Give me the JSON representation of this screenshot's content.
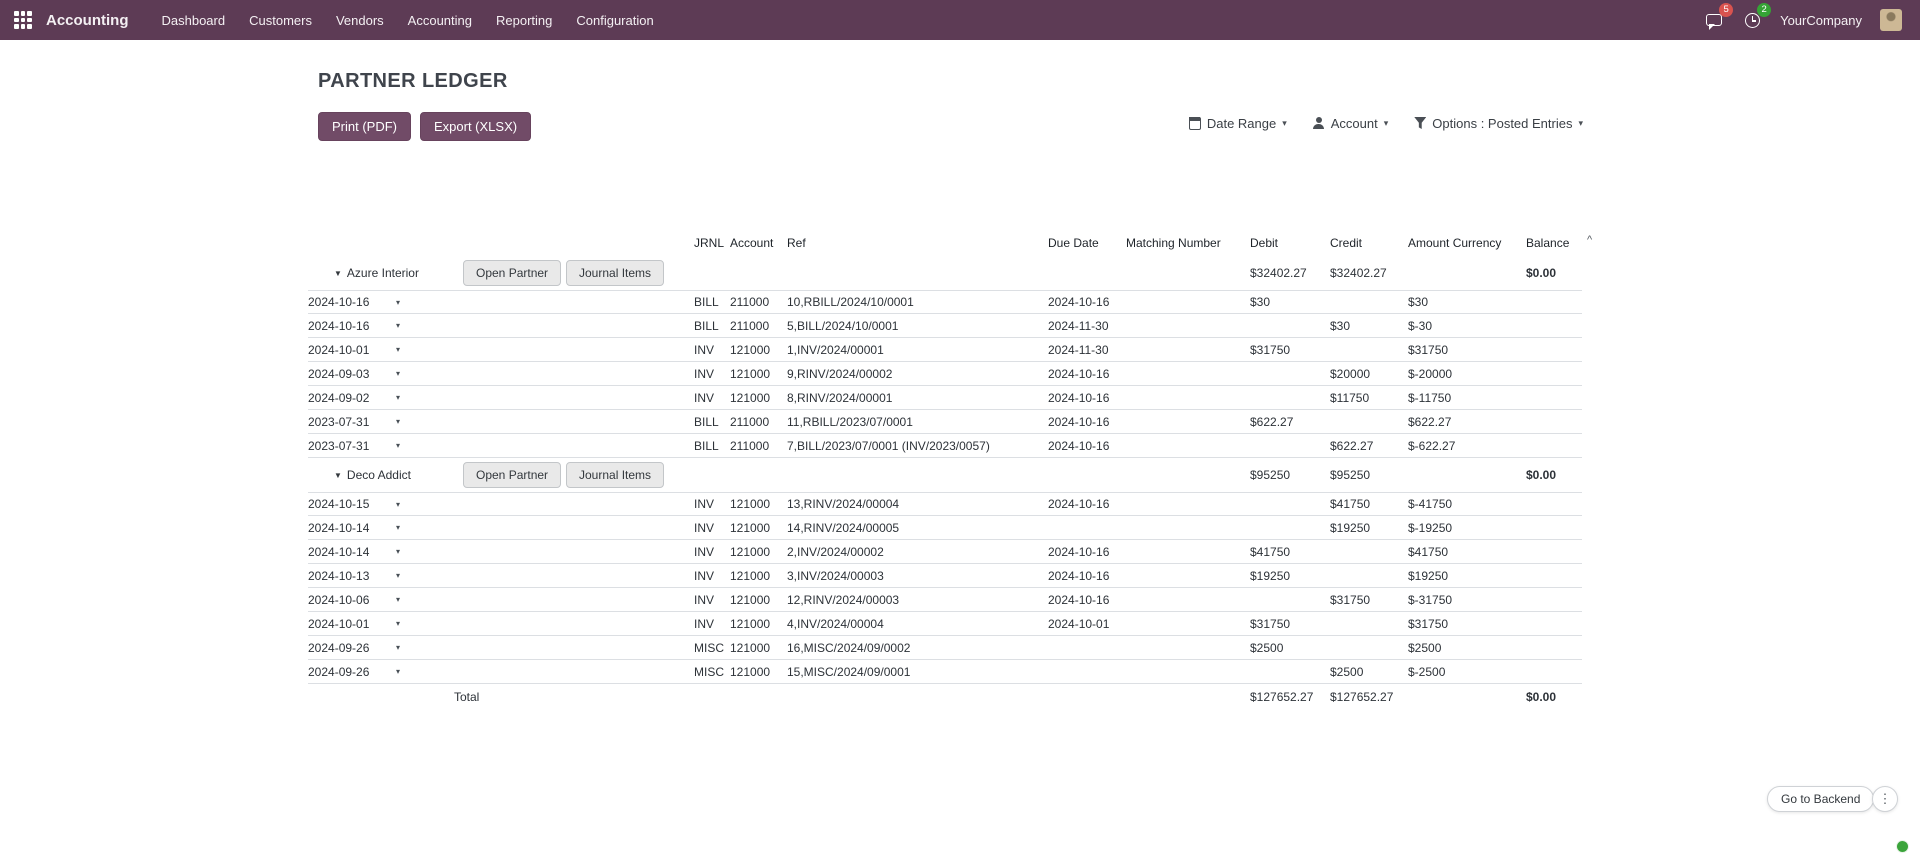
{
  "colors": {
    "primary": "#714B67",
    "topbar": "#5d3b55",
    "badge_red": "#d9534f",
    "badge_green": "#35a435"
  },
  "icons": {
    "fold_caret": "▼",
    "caret_down": "▾",
    "sort_asc": "^",
    "ellipsis": "⋮"
  },
  "topbar": {
    "brand": "Accounting",
    "menus": [
      "Dashboard",
      "Customers",
      "Vendors",
      "Accounting",
      "Reporting",
      "Configuration"
    ],
    "messages_badge": "5",
    "activity_badge": "2",
    "company": "YourCompany"
  },
  "page": {
    "title": "PARTNER LEDGER",
    "print_button": "Print (PDF)",
    "export_button": "Export (XLSX)"
  },
  "filters": {
    "date_range": "Date Range",
    "account": "Account",
    "options": "Options : Posted Entries"
  },
  "table": {
    "headers": {
      "jrnl": "JRNL",
      "account": "Account",
      "ref": "Ref",
      "due_date": "Due Date",
      "matching": "Matching Number",
      "debit": "Debit",
      "credit": "Credit",
      "amount_currency": "Amount Currency",
      "balance": "Balance"
    },
    "buttons": {
      "open_partner": "Open Partner",
      "journal_items": "Journal Items"
    },
    "groups": [
      {
        "name": "Azure Interior",
        "debit": "$32402.27",
        "credit": "$32402.27",
        "balance": "$0.00",
        "rows": [
          {
            "date": "2024-10-16",
            "jrnl": "BILL",
            "account": "211000",
            "ref": "10,RBILL/2024/10/0001",
            "due": "2024-10-16",
            "matching": "",
            "debit": "$30",
            "credit": "",
            "amount": "$30"
          },
          {
            "date": "2024-10-16",
            "jrnl": "BILL",
            "account": "211000",
            "ref": "5,BILL/2024/10/0001",
            "due": "2024-11-30",
            "matching": "",
            "debit": "",
            "credit": "$30",
            "amount": "$-30"
          },
          {
            "date": "2024-10-01",
            "jrnl": "INV",
            "account": "121000",
            "ref": "1,INV/2024/00001",
            "due": "2024-11-30",
            "matching": "",
            "debit": "$31750",
            "credit": "",
            "amount": "$31750"
          },
          {
            "date": "2024-09-03",
            "jrnl": "INV",
            "account": "121000",
            "ref": "9,RINV/2024/00002",
            "due": "2024-10-16",
            "matching": "",
            "debit": "",
            "credit": "$20000",
            "amount": "$-20000"
          },
          {
            "date": "2024-09-02",
            "jrnl": "INV",
            "account": "121000",
            "ref": "8,RINV/2024/00001",
            "due": "2024-10-16",
            "matching": "",
            "debit": "",
            "credit": "$11750",
            "amount": "$-11750"
          },
          {
            "date": "2023-07-31",
            "jrnl": "BILL",
            "account": "211000",
            "ref": "11,RBILL/2023/07/0001",
            "due": "2024-10-16",
            "matching": "",
            "debit": "$622.27",
            "credit": "",
            "amount": "$622.27"
          },
          {
            "date": "2023-07-31",
            "jrnl": "BILL",
            "account": "211000",
            "ref": "7,BILL/2023/07/0001 (INV/2023/0057)",
            "due": "2024-10-16",
            "matching": "",
            "debit": "",
            "credit": "$622.27",
            "amount": "$-622.27"
          }
        ]
      },
      {
        "name": "Deco Addict",
        "debit": "$95250",
        "credit": "$95250",
        "balance": "$0.00",
        "rows": [
          {
            "date": "2024-10-15",
            "jrnl": "INV",
            "account": "121000",
            "ref": "13,RINV/2024/00004",
            "due": "2024-10-16",
            "matching": "",
            "debit": "",
            "credit": "$41750",
            "amount": "$-41750"
          },
          {
            "date": "2024-10-14",
            "jrnl": "INV",
            "account": "121000",
            "ref": "14,RINV/2024/00005",
            "due": "",
            "matching": "",
            "debit": "",
            "credit": "$19250",
            "amount": "$-19250"
          },
          {
            "date": "2024-10-14",
            "jrnl": "INV",
            "account": "121000",
            "ref": "2,INV/2024/00002",
            "due": "2024-10-16",
            "matching": "",
            "debit": "$41750",
            "credit": "",
            "amount": "$41750"
          },
          {
            "date": "2024-10-13",
            "jrnl": "INV",
            "account": "121000",
            "ref": "3,INV/2024/00003",
            "due": "2024-10-16",
            "matching": "",
            "debit": "$19250",
            "credit": "",
            "amount": "$19250"
          },
          {
            "date": "2024-10-06",
            "jrnl": "INV",
            "account": "121000",
            "ref": "12,RINV/2024/00003",
            "due": "2024-10-16",
            "matching": "",
            "debit": "",
            "credit": "$31750",
            "amount": "$-31750"
          },
          {
            "date": "2024-10-01",
            "jrnl": "INV",
            "account": "121000",
            "ref": "4,INV/2024/00004",
            "due": "2024-10-01",
            "matching": "",
            "debit": "$31750",
            "credit": "",
            "amount": "$31750"
          },
          {
            "date": "2024-09-26",
            "jrnl": "MISC",
            "account": "121000",
            "ref": "16,MISC/2024/09/0002",
            "due": "",
            "matching": "",
            "debit": "$2500",
            "credit": "",
            "amount": "$2500"
          },
          {
            "date": "2024-09-26",
            "jrnl": "MISC",
            "account": "121000",
            "ref": "15,MISC/2024/09/0001",
            "due": "",
            "matching": "",
            "debit": "",
            "credit": "$2500",
            "amount": "$-2500"
          }
        ]
      }
    ],
    "total": {
      "label": "Total",
      "debit": "$127652.27",
      "credit": "$127652.27",
      "balance": "$0.00"
    }
  },
  "footer": {
    "go_to_backend": "Go to Backend"
  }
}
